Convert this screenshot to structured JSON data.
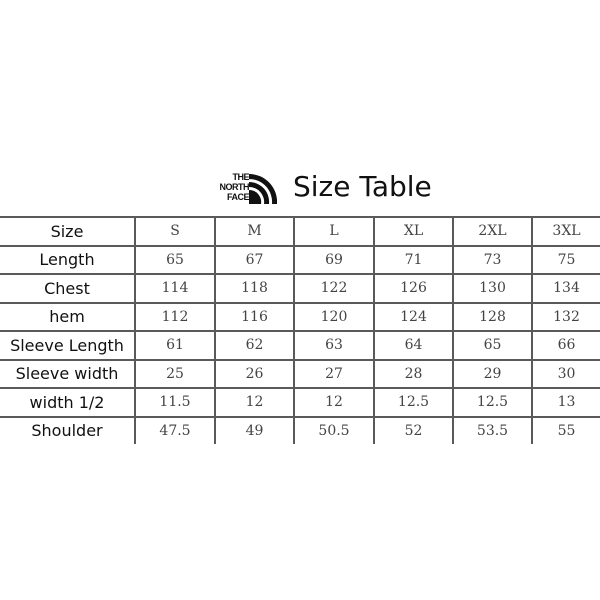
{
  "header": {
    "logo_text": [
      "THE",
      "NORTH",
      "FACE"
    ],
    "title": "Size Table"
  },
  "table": {
    "columns": [
      "Size",
      "S",
      "M",
      "L",
      "XL",
      "2XL",
      "3XL"
    ],
    "rows": [
      {
        "label": "Length",
        "values": [
          "65",
          "67",
          "69",
          "71",
          "73",
          "75"
        ]
      },
      {
        "label": "Chest",
        "values": [
          "114",
          "118",
          "122",
          "126",
          "130",
          "134"
        ]
      },
      {
        "label": "hem",
        "values": [
          "112",
          "116",
          "120",
          "124",
          "128",
          "132"
        ]
      },
      {
        "label": "Sleeve Length",
        "values": [
          "61",
          "62",
          "63",
          "64",
          "65",
          "66"
        ]
      },
      {
        "label": "Sleeve width",
        "values": [
          "25",
          "26",
          "27",
          "28",
          "29",
          "30"
        ]
      },
      {
        "label": "width 1/2",
        "values": [
          "11.5",
          "12",
          "12",
          "12.5",
          "12.5",
          "13"
        ]
      },
      {
        "label": "Shoulder",
        "values": [
          "47.5",
          "49",
          "50.5",
          "52",
          "53.5",
          "55"
        ]
      }
    ]
  }
}
